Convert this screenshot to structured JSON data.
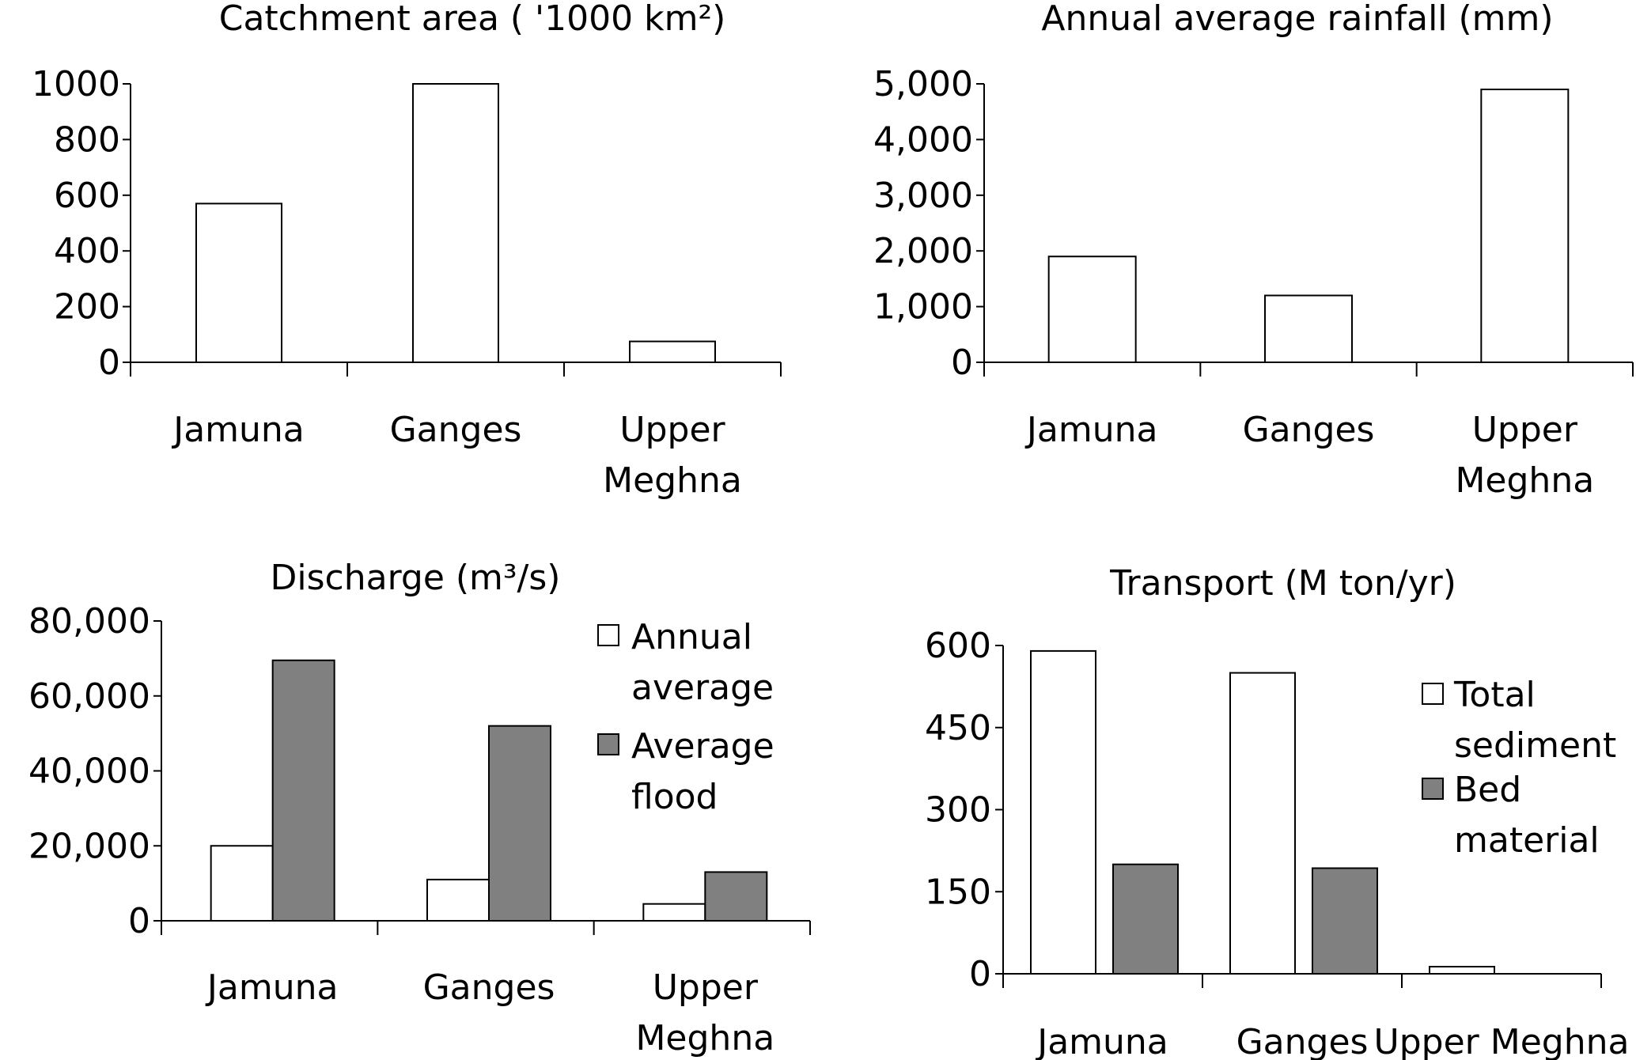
{
  "chart_data": [
    {
      "type": "bar",
      "title": "Catchment area ( '1000 km²)",
      "categories": [
        "Jamuna",
        "Ganges",
        "Upper Meghna"
      ],
      "category_lines": [
        [
          "Jamuna"
        ],
        [
          "Ganges"
        ],
        [
          "Upper",
          "Meghna"
        ]
      ],
      "series": [
        {
          "values": [
            570,
            1000,
            75
          ],
          "color": "#ffffff"
        }
      ],
      "ylim": [
        0,
        1000
      ],
      "yticks": [
        0,
        200,
        400,
        600,
        800,
        1000
      ],
      "ytick_labels": [
        "0",
        "200",
        "400",
        "600",
        "800",
        "1000"
      ],
      "grid": false,
      "legend": null
    },
    {
      "type": "bar",
      "title": "Annual average rainfall (mm)",
      "categories": [
        "Jamuna",
        "Ganges",
        "Upper Meghna"
      ],
      "category_lines": [
        [
          "Jamuna"
        ],
        [
          "Ganges"
        ],
        [
          "Upper",
          "Meghna"
        ]
      ],
      "series": [
        {
          "values": [
            1900,
            1200,
            4900
          ],
          "color": "#ffffff"
        }
      ],
      "ylim": [
        0,
        5000
      ],
      "yticks": [
        0,
        1000,
        2000,
        3000,
        4000,
        5000
      ],
      "ytick_labels": [
        "0",
        "1,000",
        "2,000",
        "3,000",
        "4,000",
        "5,000"
      ],
      "grid": false,
      "legend": null
    },
    {
      "type": "bar",
      "title": "Discharge (m³/s)",
      "categories": [
        "Jamuna",
        "Ganges",
        "Upper Meghna"
      ],
      "category_lines": [
        [
          "Jamuna"
        ],
        [
          "Ganges"
        ],
        [
          "Upper",
          "Meghna"
        ]
      ],
      "series": [
        {
          "name": "Annual average",
          "name_lines": [
            "Annual",
            "average"
          ],
          "values": [
            20000,
            11000,
            4500
          ],
          "color": "#ffffff"
        },
        {
          "name": "Average flood",
          "name_lines": [
            "Average",
            "flood"
          ],
          "values": [
            69500,
            52000,
            13000
          ],
          "color": "#808080"
        }
      ],
      "ylim": [
        0,
        80000
      ],
      "yticks": [
        0,
        20000,
        40000,
        60000,
        80000
      ],
      "ytick_labels": [
        "0",
        "20,000",
        "40,000",
        "60,000",
        "80,000"
      ],
      "grid": false,
      "legend": "right"
    },
    {
      "type": "bar",
      "title": "Transport (M ton/yr)",
      "categories": [
        "Jamuna",
        "Ganges",
        "Upper Meghna"
      ],
      "category_lines": [
        [
          "Jamuna"
        ],
        [
          "Ganges"
        ],
        [
          "Upper Meghna"
        ]
      ],
      "series": [
        {
          "name": "Total sediment",
          "name_lines": [
            "Total",
            "sediment"
          ],
          "values": [
            590,
            550,
            13
          ],
          "color": "#ffffff"
        },
        {
          "name": "Bed material",
          "name_lines": [
            "Bed",
            "material"
          ],
          "values": [
            200,
            193,
            0
          ],
          "color": "#808080"
        }
      ],
      "ylim": [
        0,
        600
      ],
      "yticks": [
        0,
        150,
        300,
        450,
        600
      ],
      "ytick_labels": [
        "0",
        "150",
        "300",
        "450",
        "600"
      ],
      "grid": false,
      "legend": "right"
    }
  ]
}
